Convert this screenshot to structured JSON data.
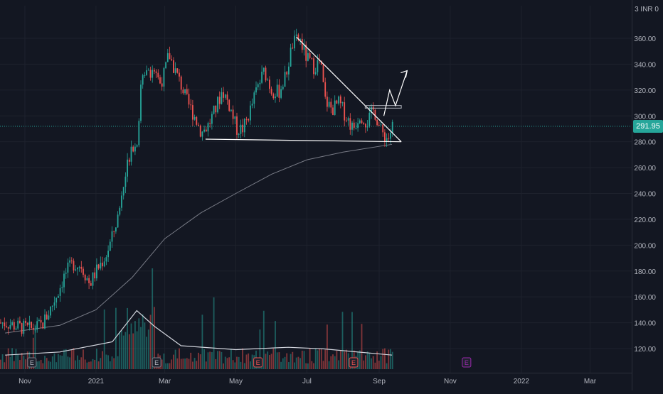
{
  "chart_data": {
    "type": "candlestick",
    "title": "",
    "currency_label": "3 INR 0",
    "current_price": "291.95",
    "ylim": [
      100,
      380
    ],
    "y_ticks": [
      {
        "value": 120,
        "label": "120.00"
      },
      {
        "value": 140,
        "label": "140.00"
      },
      {
        "value": 160,
        "label": "160.00"
      },
      {
        "value": 180,
        "label": "180.00"
      },
      {
        "value": 200,
        "label": "200.00"
      },
      {
        "value": 220,
        "label": "220.00"
      },
      {
        "value": 240,
        "label": "240.00"
      },
      {
        "value": 260,
        "label": "260.00"
      },
      {
        "value": 280,
        "label": "280.00"
      },
      {
        "value": 300,
        "label": "300.00"
      },
      {
        "value": 320,
        "label": "320.00"
      },
      {
        "value": 340,
        "label": "340.00"
      },
      {
        "value": 360,
        "label": "360.00"
      }
    ],
    "x_ticks": [
      "Nov",
      "2021",
      "Mar",
      "May",
      "Jul",
      "Sep",
      "Nov",
      "2022",
      "Mar"
    ],
    "price_path": [
      [
        "2020-10-15",
        140
      ],
      [
        "2020-10-25",
        137
      ],
      [
        "2020-11-05",
        135
      ],
      [
        "2020-11-15",
        138
      ],
      [
        "2020-11-22",
        150
      ],
      [
        "2020-11-28",
        162
      ],
      [
        "2020-12-05",
        178
      ],
      [
        "2020-12-12",
        186
      ],
      [
        "2020-12-19",
        184
      ],
      [
        "2020-12-26",
        170
      ],
      [
        "2021-01-02",
        182
      ],
      [
        "2021-01-09",
        192
      ],
      [
        "2021-01-14",
        205
      ],
      [
        "2021-01-20",
        225
      ],
      [
        "2021-01-26",
        255
      ],
      [
        "2021-01-31",
        280
      ],
      [
        "2021-02-04",
        275
      ],
      [
        "2021-02-08",
        320
      ],
      [
        "2021-02-12",
        340
      ],
      [
        "2021-02-16",
        335
      ],
      [
        "2021-02-20",
        338
      ],
      [
        "2021-02-24",
        325
      ],
      [
        "2021-02-28",
        332
      ],
      [
        "2021-03-04",
        348
      ],
      [
        "2021-03-08",
        338
      ],
      [
        "2021-03-14",
        325
      ],
      [
        "2021-03-20",
        310
      ],
      [
        "2021-03-26",
        300
      ],
      [
        "2021-04-01",
        287
      ],
      [
        "2021-04-07",
        293
      ],
      [
        "2021-04-13",
        305
      ],
      [
        "2021-04-19",
        320
      ],
      [
        "2021-04-25",
        308
      ],
      [
        "2021-05-01",
        290
      ],
      [
        "2021-05-07",
        290
      ],
      [
        "2021-05-13",
        305
      ],
      [
        "2021-05-19",
        322
      ],
      [
        "2021-05-25",
        335
      ],
      [
        "2021-05-31",
        320
      ],
      [
        "2021-06-06",
        318
      ],
      [
        "2021-06-12",
        330
      ],
      [
        "2021-06-18",
        355
      ],
      [
        "2021-06-24",
        360
      ],
      [
        "2021-06-30",
        345
      ],
      [
        "2021-07-06",
        338
      ],
      [
        "2021-07-12",
        342
      ],
      [
        "2021-07-16",
        312
      ],
      [
        "2021-07-22",
        305
      ],
      [
        "2021-07-28",
        310
      ],
      [
        "2021-08-03",
        300
      ],
      [
        "2021-08-09",
        290
      ],
      [
        "2021-08-15",
        302
      ],
      [
        "2021-08-21",
        295
      ],
      [
        "2021-08-27",
        305
      ],
      [
        "2021-09-02",
        288
      ],
      [
        "2021-09-08",
        282
      ],
      [
        "2021-09-12",
        292
      ]
    ],
    "ma_path": [
      [
        "2020-10-15",
        132
      ],
      [
        "2020-12-01",
        138
      ],
      [
        "2021-01-01",
        150
      ],
      [
        "2021-02-01",
        175
      ],
      [
        "2021-03-01",
        205
      ],
      [
        "2021-04-01",
        225
      ],
      [
        "2021-05-01",
        240
      ],
      [
        "2021-06-01",
        255
      ],
      [
        "2021-07-01",
        266
      ],
      [
        "2021-08-01",
        272
      ],
      [
        "2021-09-12",
        278
      ]
    ],
    "volume_avg": [
      [
        "2020-10-15",
        0.18
      ],
      [
        "2020-12-01",
        0.22
      ],
      [
        "2021-01-15",
        0.35
      ],
      [
        "2021-02-05",
        0.75
      ],
      [
        "2021-02-20",
        0.55
      ],
      [
        "2021-03-15",
        0.3
      ],
      [
        "2021-05-01",
        0.25
      ],
      [
        "2021-06-15",
        0.28
      ],
      [
        "2021-07-15",
        0.26
      ],
      [
        "2021-09-12",
        0.18
      ]
    ],
    "drawings": {
      "resistance_line": [
        [
          "2021-06-22",
          361
        ],
        [
          "2021-09-20",
          280
        ]
      ],
      "support_line": [
        [
          "2021-04-05",
          282
        ],
        [
          "2021-09-20",
          280
        ]
      ],
      "breakout_box_y": [
        306,
        308
      ],
      "projection": [
        [
          "2021-09-05",
          300
        ],
        [
          "2021-09-10",
          320
        ],
        [
          "2021-09-15",
          308
        ],
        [
          "2021-09-25",
          335
        ]
      ]
    },
    "events": [
      {
        "label": "E",
        "type": "earnings"
      },
      {
        "label": "E",
        "type": "earnings"
      },
      {
        "label": "E",
        "type": "earnings-red"
      },
      {
        "label": "E",
        "type": "earnings-red"
      },
      {
        "label": "E",
        "type": "earnings-future"
      }
    ],
    "colors": {
      "background": "#131722",
      "up": "#26a69a",
      "down": "#ef5350",
      "axis_text": "#b2b5be",
      "grid": "#1e222d",
      "current_line": "#26a69a",
      "drawing": "#ffffff",
      "event_future": "#9c27b0"
    }
  }
}
